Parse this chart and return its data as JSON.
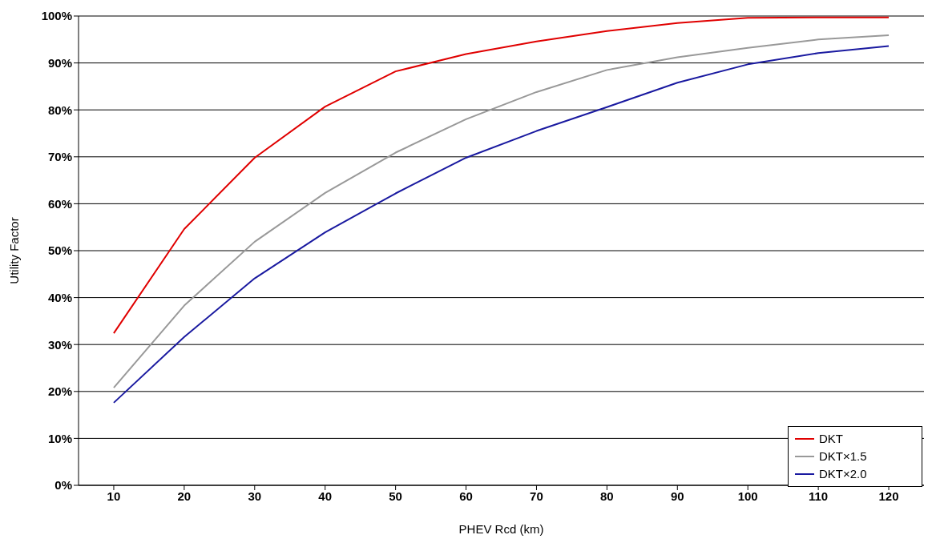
{
  "chart_data": {
    "type": "line",
    "xlabel": "PHEV Rcd (km)",
    "ylabel": "Utility Factor",
    "categories": [
      "10",
      "20",
      "30",
      "40",
      "50",
      "60",
      "70",
      "80",
      "90",
      "100",
      "110",
      "120"
    ],
    "series": [
      {
        "name": "DKT",
        "color": "#e00000",
        "values": [
          32.4,
          54.6,
          69.8,
          80.7,
          88.2,
          91.9,
          94.6,
          96.8,
          98.5,
          99.6,
          99.7,
          99.7
        ]
      },
      {
        "name": "DKT×1.5",
        "color": "#999999",
        "values": [
          20.8,
          38.3,
          51.9,
          62.3,
          70.9,
          78,
          83.8,
          88.5,
          91.2,
          93.2,
          95,
          95.9
        ]
      },
      {
        "name": "DKT×2.0",
        "color": "#1a1aa0",
        "values": [
          17.6,
          31.6,
          44.1,
          53.9,
          62.2,
          69.8,
          75.5,
          80.6,
          85.8,
          89.7,
          92.1,
          93.6
        ]
      }
    ],
    "ylim": [
      0,
      100
    ],
    "yticks": [
      {
        "value": 0,
        "label": "0%"
      },
      {
        "value": 10,
        "label": "10%"
      },
      {
        "value": 20,
        "label": "20%"
      },
      {
        "value": 30,
        "label": "30%"
      },
      {
        "value": 40,
        "label": "40%"
      },
      {
        "value": 50,
        "label": "50%"
      },
      {
        "value": 60,
        "label": "60%"
      },
      {
        "value": 70,
        "label": "70%"
      },
      {
        "value": 80,
        "label": "80%"
      },
      {
        "value": 90,
        "label": "90%"
      },
      {
        "value": 100,
        "label": "100%"
      }
    ],
    "grid": "y",
    "legend": "bottom right",
    "marker": "none",
    "line_style": "solid"
  }
}
